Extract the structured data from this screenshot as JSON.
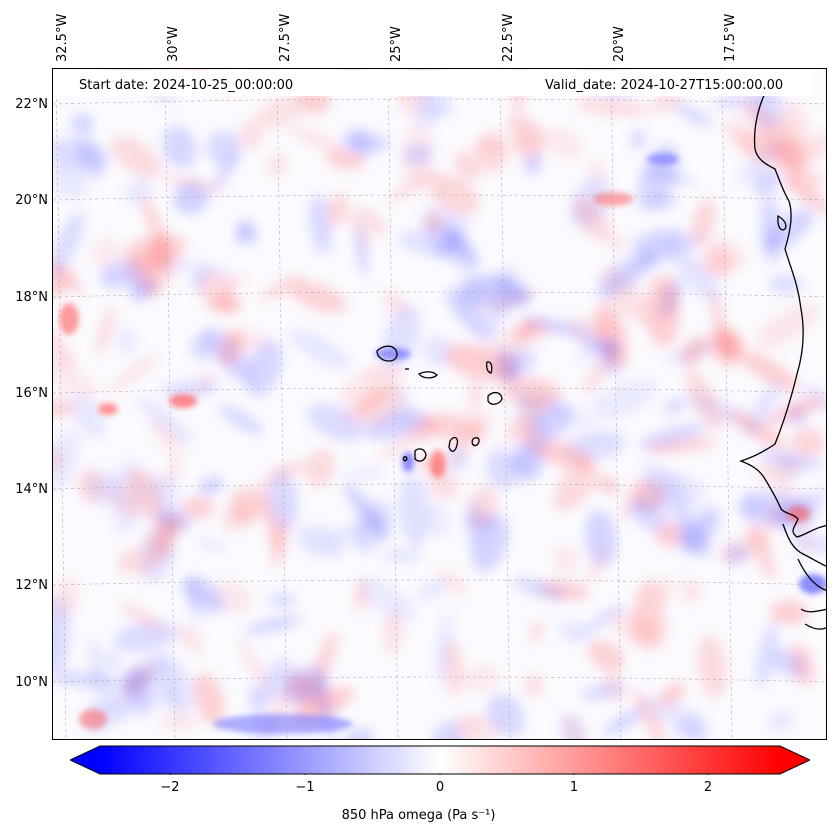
{
  "map": {
    "header": {
      "start_date": "Start date: 2024-10-25_00:00:00",
      "valid_date": "Valid_date: 2024-10-27T15:00:00.00"
    },
    "lat_labels": [
      "22°N",
      "20°N",
      "18°N",
      "16°N",
      "14°N",
      "12°N",
      "10°N"
    ],
    "lon_labels": [
      "32.5°W",
      "30°W",
      "27.5°W",
      "25°W",
      "22.5°W",
      "20°W",
      "17.5°W"
    ],
    "colors": {
      "positive": "#ff0000",
      "negative": "#0000ff",
      "neutral": "#ffffff",
      "coastline": "#000000"
    }
  },
  "colorbar": {
    "ticks": [
      "−2",
      "−1",
      "0",
      "1",
      "2"
    ],
    "label": "850 hPa omega (Pa s⁻¹)"
  }
}
